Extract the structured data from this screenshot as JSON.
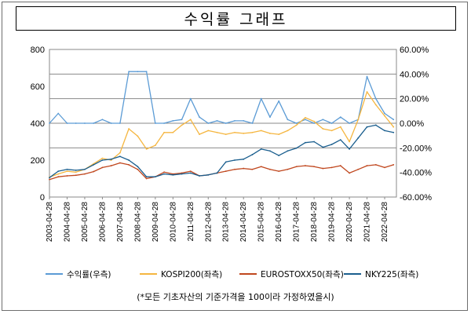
{
  "title": "수익률 그래프",
  "footnote": "(*모든 기초자산의 기준가격을 100이라 가정하였을시)",
  "chart_data": {
    "type": "line",
    "title": "수익률 그래프",
    "left_axis": {
      "min": 0,
      "max": 800,
      "ticks": [
        "0",
        "200",
        "400",
        "600",
        "800"
      ]
    },
    "right_axis": {
      "min": -60,
      "max": 60,
      "ticks": [
        "-60.00%",
        "-40.00%",
        "-20.00%",
        "0.00%",
        "20.00%",
        "40.00%",
        "60.00%"
      ]
    },
    "x_tick_labels": [
      "2003-04-28",
      "2004-04-28",
      "2005-04-28",
      "2006-04-28",
      "2007-04-28",
      "2008-04-28",
      "2009-04-28",
      "2010-04-28",
      "2011-04-28",
      "2012-04-28",
      "2013-04-28",
      "2014-04-28",
      "2015-04-28",
      "2016-04-28",
      "2017-04-28",
      "2018-04-28",
      "2019-04-28",
      "2020-04-28",
      "2021-04-28",
      "2022-04-28"
    ],
    "grid_lines_right_axis": [
      -20,
      20,
      40
    ],
    "zero_line": 0,
    "legend_position": "bottom",
    "x_dates": [
      "2003-04",
      "2003-10",
      "2004-04",
      "2004-10",
      "2005-04",
      "2005-10",
      "2006-04",
      "2006-10",
      "2007-04",
      "2007-10",
      "2008-04",
      "2008-10",
      "2009-04",
      "2009-10",
      "2010-04",
      "2010-10",
      "2011-04",
      "2011-10",
      "2012-04",
      "2012-10",
      "2013-04",
      "2013-10",
      "2014-04",
      "2014-10",
      "2015-04",
      "2015-10",
      "2016-04",
      "2016-10",
      "2017-04",
      "2017-10",
      "2018-04",
      "2018-10",
      "2019-04",
      "2019-10",
      "2020-04",
      "2020-10",
      "2021-04",
      "2021-10",
      "2022-04",
      "2022-10"
    ],
    "series": [
      {
        "name": "수익률(우측)",
        "axis": "right",
        "color": "#5b9bd5",
        "values": [
          0,
          8,
          0,
          0,
          0,
          0,
          3,
          0,
          0,
          42,
          42,
          42,
          0,
          0,
          2,
          3,
          20,
          5,
          0,
          2,
          0,
          2,
          2,
          0,
          20,
          5,
          18,
          3,
          0,
          3,
          0,
          3,
          0,
          5,
          0,
          3,
          38,
          20,
          8,
          3
        ]
      },
      {
        "name": "KOSPI200(좌측)",
        "axis": "left",
        "color": "#f5b640",
        "values": [
          108,
          125,
          140,
          135,
          150,
          180,
          210,
          200,
          240,
          370,
          330,
          260,
          280,
          350,
          350,
          390,
          420,
          340,
          360,
          350,
          340,
          350,
          345,
          350,
          360,
          345,
          340,
          360,
          390,
          430,
          410,
          370,
          360,
          380,
          300,
          420,
          570,
          500,
          440,
          380
        ]
      },
      {
        "name": "EUROSTOXX50(좌측)",
        "axis": "left",
        "color": "#c0471e",
        "values": [
          95,
          110,
          115,
          118,
          125,
          138,
          160,
          170,
          185,
          175,
          150,
          100,
          110,
          135,
          125,
          130,
          140,
          115,
          120,
          130,
          140,
          150,
          155,
          150,
          165,
          150,
          140,
          150,
          165,
          170,
          165,
          155,
          160,
          170,
          130,
          150,
          170,
          175,
          160,
          175
        ]
      },
      {
        "name": "NKY225(좌측)",
        "axis": "left",
        "color": "#1a5e8e",
        "values": [
          105,
          140,
          150,
          145,
          150,
          175,
          200,
          205,
          220,
          200,
          165,
          110,
          110,
          125,
          120,
          125,
          130,
          115,
          120,
          130,
          190,
          200,
          205,
          230,
          260,
          250,
          225,
          250,
          265,
          295,
          300,
          270,
          285,
          310,
          260,
          320,
          380,
          390,
          360,
          350
        ]
      }
    ]
  },
  "legend": [
    {
      "label": "수익률(우측)",
      "color": "#5b9bd5"
    },
    {
      "label": "KOSPI200(좌측)",
      "color": "#f5b640"
    },
    {
      "label": "EUROSTOXX50(좌측)",
      "color": "#c0471e"
    },
    {
      "label": "NKY225(좌측)",
      "color": "#1a5e8e"
    }
  ]
}
